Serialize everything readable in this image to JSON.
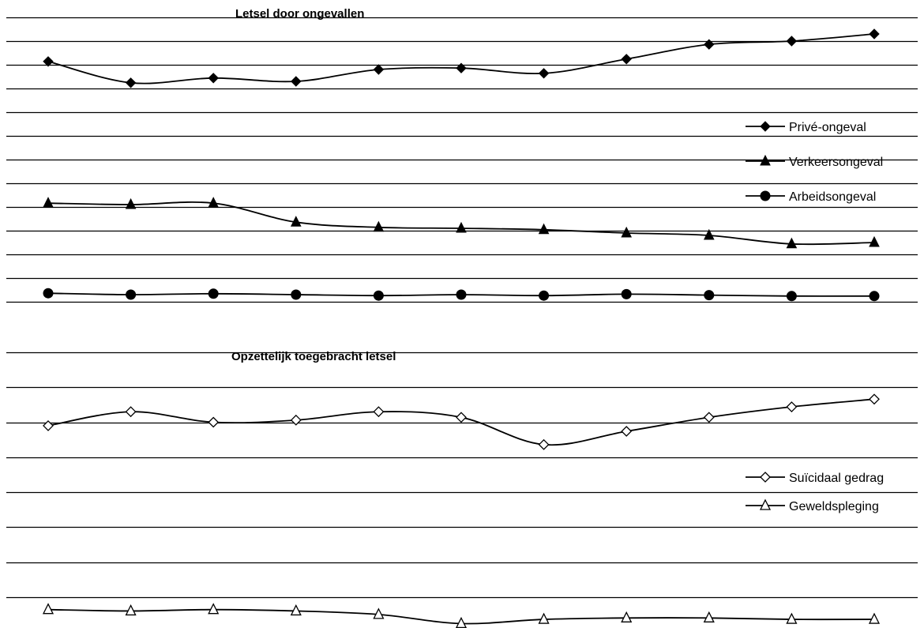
{
  "chart_data": [
    {
      "type": "line",
      "title": "Letsel door ongevallen",
      "xlabel": "",
      "ylabel": "",
      "ylim": [
        0,
        6
      ],
      "grid": true,
      "legend_position": "right",
      "x": [
        1,
        2,
        3,
        4,
        5,
        6,
        7,
        8,
        9,
        10,
        11
      ],
      "series": [
        {
          "name": "Privé-ongeval",
          "marker": "diamond-filled",
          "values": [
            5.07,
            4.62,
            4.72,
            4.65,
            4.9,
            4.93,
            4.82,
            5.12,
            5.43,
            5.5,
            5.65
          ]
        },
        {
          "name": "Verkeersongeval",
          "marker": "triangle-filled",
          "values": [
            2.08,
            2.05,
            2.08,
            1.68,
            1.57,
            1.55,
            1.52,
            1.45,
            1.4,
            1.22,
            1.25
          ]
        },
        {
          "name": "Arbeidsongeval",
          "marker": "circle-filled",
          "values": 0.15
        }
      ]
    },
    {
      "type": "line",
      "title": "Opzettelijk toegebracht letsel",
      "xlabel": "",
      "ylabel": "",
      "ylim": [
        0,
        4
      ],
      "grid": true,
      "legend_position": "right",
      "x": [
        1,
        2,
        3,
        4,
        5,
        6,
        7,
        8,
        9,
        10,
        11
      ],
      "series": [
        {
          "name": "Suïcidaal gedrag",
          "marker": "diamond-open",
          "values": [
            2.95,
            3.15,
            3.0,
            3.03,
            3.15,
            3.07,
            2.68,
            2.87,
            3.07,
            3.22,
            3.33
          ]
        },
        {
          "name": "Geweldspleging",
          "marker": "triangle-open",
          "values": [
            0.32,
            0.3,
            0.32,
            0.3,
            0.25,
            0.12,
            0.18,
            0.2,
            0.2,
            0.18,
            0.18
          ]
        }
      ]
    }
  ]
}
